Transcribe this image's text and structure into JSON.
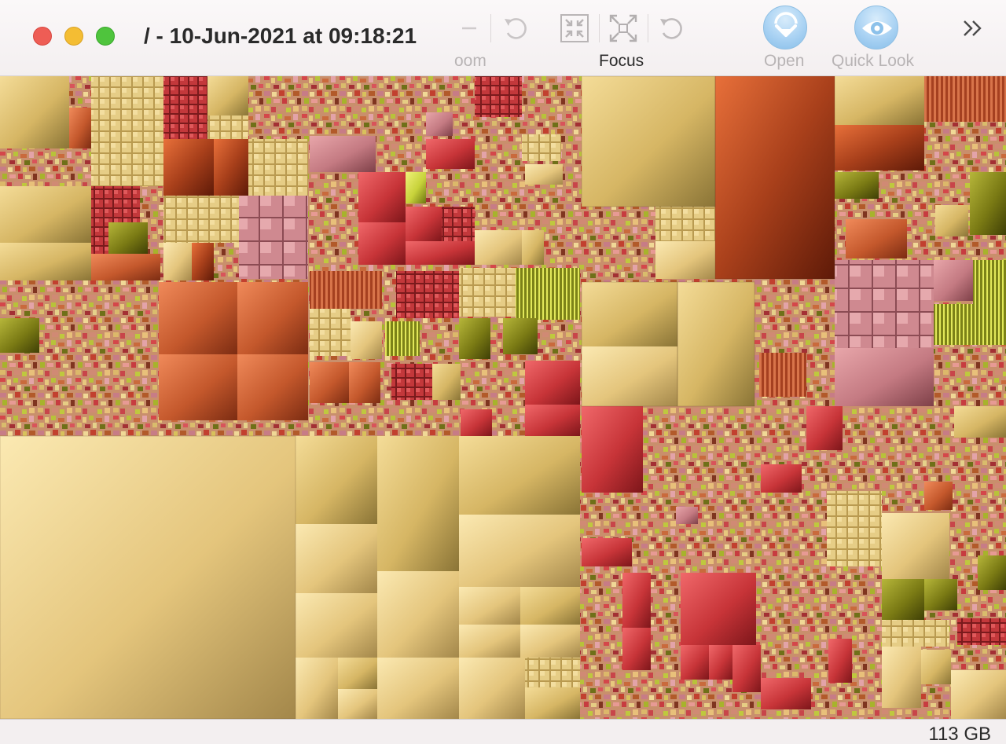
{
  "window": {
    "title": "/ - 10-Jun-2021 at 09:18:21"
  },
  "toolbar": {
    "zoom_label": "oom",
    "focus_label": "Focus",
    "open_label": "Open",
    "quicklook_label": "Quick Look"
  },
  "icons": {
    "minus": "minus-icon",
    "undo": "undo-icon",
    "zoom_in": "collapse-arrows-icon",
    "focus": "expand-arrows-icon",
    "focus_undo": "undo-icon",
    "open": "open-download-icon",
    "quicklook": "eye-icon",
    "overflow": "chevron-double-right-icon"
  },
  "status": {
    "total_size": "113 GB"
  },
  "colors": {
    "close": "#ee5d55",
    "minimize": "#f4bd33",
    "maximize": "#4fc43d",
    "treemap_gold": "#d9b964",
    "treemap_copper": "#c45a2b",
    "treemap_red": "#c8363a",
    "treemap_rose": "#c97f86",
    "treemap_olive": "#7a7a14",
    "treemap_lime": "#c7d23a"
  }
}
